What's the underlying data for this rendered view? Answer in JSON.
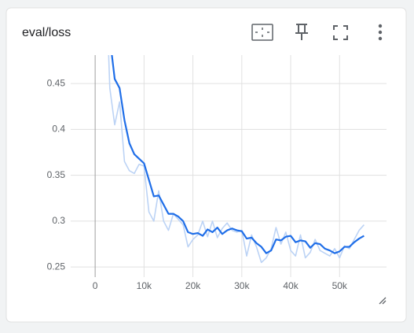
{
  "chart_data": {
    "type": "line",
    "title": "eval/loss",
    "x": [
      2000,
      3000,
      4000,
      5000,
      6000,
      7000,
      8000,
      9000,
      10000,
      11000,
      12000,
      13000,
      14000,
      15000,
      16000,
      17000,
      18000,
      19000,
      20000,
      21000,
      22000,
      23000,
      24000,
      25000,
      26000,
      27000,
      28000,
      29000,
      30000,
      31000,
      32000,
      33000,
      34000,
      35000,
      36000,
      37000,
      38000,
      39000,
      40000,
      41000,
      42000,
      43000,
      44000,
      45000,
      46000,
      47000,
      48000,
      49000,
      50000,
      51000,
      52000,
      53000,
      54000,
      55000
    ],
    "series": [
      {
        "color": "#bcd3f5",
        "values": [
          0.6,
          0.445,
          0.405,
          0.43,
          0.365,
          0.355,
          0.352,
          0.362,
          0.36,
          0.31,
          0.3,
          0.333,
          0.3,
          0.29,
          0.308,
          0.302,
          0.296,
          0.272,
          0.28,
          0.285,
          0.3,
          0.283,
          0.3,
          0.282,
          0.292,
          0.298,
          0.29,
          0.288,
          0.29,
          0.262,
          0.285,
          0.272,
          0.255,
          0.26,
          0.27,
          0.293,
          0.275,
          0.288,
          0.268,
          0.262,
          0.285,
          0.26,
          0.266,
          0.28,
          0.268,
          0.265,
          0.262,
          0.27,
          0.26,
          0.273,
          0.27,
          0.28,
          0.29,
          0.296
        ]
      },
      {
        "color": "#1f6ee8",
        "values": [
          0.56,
          0.5,
          0.455,
          0.445,
          0.41,
          0.385,
          0.373,
          0.368,
          0.363,
          0.345,
          0.327,
          0.328,
          0.318,
          0.308,
          0.308,
          0.305,
          0.3,
          0.288,
          0.286,
          0.287,
          0.284,
          0.291,
          0.288,
          0.293,
          0.286,
          0.29,
          0.292,
          0.29,
          0.289,
          0.281,
          0.282,
          0.276,
          0.272,
          0.265,
          0.268,
          0.28,
          0.279,
          0.283,
          0.284,
          0.277,
          0.279,
          0.278,
          0.271,
          0.276,
          0.275,
          0.27,
          0.268,
          0.265,
          0.267,
          0.272,
          0.272,
          0.277,
          0.281,
          0.284
        ]
      }
    ],
    "xlim": [
      -5000,
      59600
    ],
    "ylim": [
      0.239,
      0.481
    ],
    "xticks": [
      0,
      {
        "value": 10000,
        "label": "10k"
      },
      {
        "value": 20000,
        "label": "20k"
      },
      {
        "value": 30000,
        "label": "30k"
      },
      {
        "value": 40000,
        "label": "40k"
      },
      {
        "value": 50000,
        "label": "50k"
      }
    ],
    "yticks": [
      0.25,
      0.3,
      0.35,
      0.4,
      0.45
    ],
    "grid": true
  }
}
